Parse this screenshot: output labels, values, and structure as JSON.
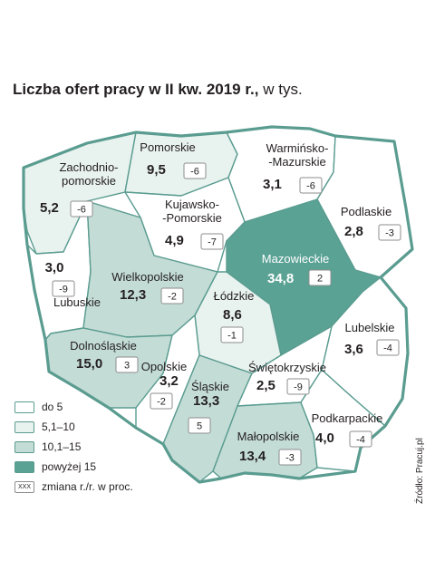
{
  "title": {
    "bold": "Liczba ofert pracy w II kw. 2019 r.,",
    "unit": "w tys."
  },
  "colors": {
    "lvl1": "#ffffff",
    "lvl2": "#e8f2ef",
    "lvl3": "#c4dcd6",
    "lvl4": "#5aa294",
    "border": "#5a9c90"
  },
  "regions": [
    {
      "name": "Zachodnio-\npomorskie",
      "value": "5,2",
      "change": "-6",
      "level": 2
    },
    {
      "name": "Pomorskie",
      "value": "9,5",
      "change": "-6",
      "level": 2
    },
    {
      "name": "Warmińsko-\n-Mazurskie",
      "value": "3,1",
      "change": "-6",
      "level": 1
    },
    {
      "name": "Podlaskie",
      "value": "2,8",
      "change": "-3",
      "level": 1
    },
    {
      "name": "Kujawsko-\n-Pomorskie",
      "value": "4,9",
      "change": "-7",
      "level": 1
    },
    {
      "name": "Lubuskie",
      "value": "3,0",
      "change": "-9",
      "level": 1
    },
    {
      "name": "Wielkopolskie",
      "value": "12,3",
      "change": "-2",
      "level": 3
    },
    {
      "name": "Mazowieckie",
      "value": "34,8",
      "change": "2",
      "level": 4
    },
    {
      "name": "Łódzkie",
      "value": "8,6",
      "change": "-1",
      "level": 2
    },
    {
      "name": "Lubelskie",
      "value": "3,6",
      "change": "-4",
      "level": 1
    },
    {
      "name": "Dolnośląskie",
      "value": "15,0",
      "change": "3",
      "level": 3
    },
    {
      "name": "Opolskie",
      "value": "3,2",
      "change": "-2",
      "level": 1
    },
    {
      "name": "Śląskie",
      "value": "13,3",
      "change": "5",
      "level": 3
    },
    {
      "name": "Świętokrzyskie",
      "value": "2,5",
      "change": "-9",
      "level": 1
    },
    {
      "name": "Małopolskie",
      "value": "13,4",
      "change": "-3",
      "level": 3
    },
    {
      "name": "Podkarpackie",
      "value": "4,0",
      "change": "-4",
      "level": 1
    }
  ],
  "legend": {
    "items": [
      {
        "label": "do 5",
        "level": 1
      },
      {
        "label": "5,1–10",
        "level": 2
      },
      {
        "label": "10,1–15",
        "level": 3
      },
      {
        "label": "powyżej 15",
        "level": 4
      }
    ],
    "change_symbol": "XXX",
    "change_label": "zmiana r./r. w proc."
  },
  "source": "Źródło: Pracuj.pl"
}
